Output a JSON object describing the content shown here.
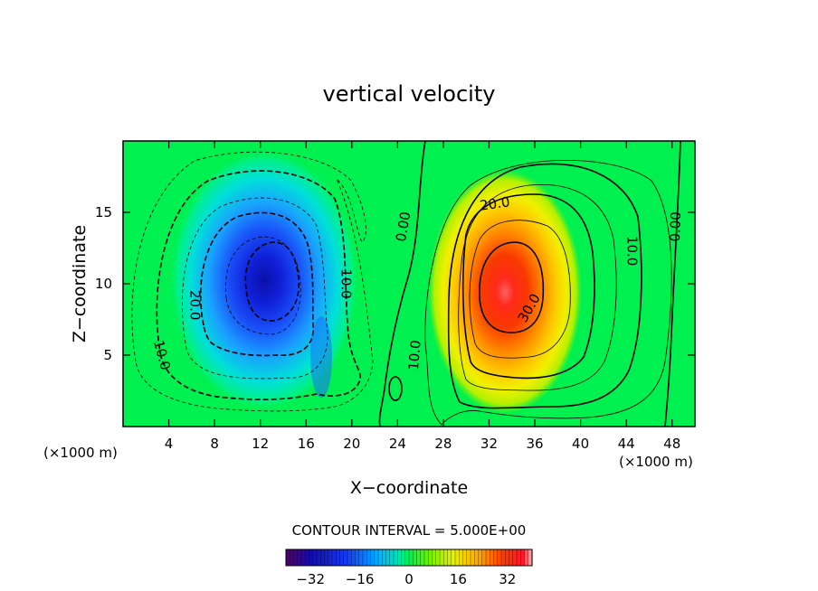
{
  "chart_data": {
    "type": "heatmap",
    "title": "vertical velocity",
    "xlabel": "X−coordinate",
    "ylabel": "Z−coordinate",
    "x_unit_left": "(×1000 m)",
    "x_unit_right": "(×1000 m)",
    "xlim": [
      0,
      50
    ],
    "ylim": [
      0,
      20
    ],
    "x_ticks": [
      4,
      8,
      12,
      16,
      20,
      24,
      28,
      32,
      36,
      40,
      44,
      48
    ],
    "y_ticks": [
      5,
      10,
      15
    ],
    "contour_interval_text": "CONTOUR INTERVAL = 5.000E+00",
    "colorbar": {
      "range": [
        -40,
        40
      ],
      "ticks": [
        {
          "value": -32,
          "label": "−32"
        },
        {
          "value": -16,
          "label": "−16"
        },
        {
          "value": 0,
          "label": "0"
        },
        {
          "value": 16,
          "label": "16"
        },
        {
          "value": 32,
          "label": "32"
        }
      ]
    },
    "features": [
      {
        "name": "downdraft",
        "center_x": 13,
        "center_z": 10.5,
        "peak": -35
      },
      {
        "name": "updraft",
        "center_x": 33,
        "center_z": 9.5,
        "peak": 38
      }
    ],
    "contour_labels": [
      {
        "text": "20.0",
        "x": 6.3,
        "z": 8.5,
        "angle": 90
      },
      {
        "text": "10.0",
        "x": 3.4,
        "z": 5.0,
        "angle": 75
      },
      {
        "text": "10.0",
        "x": 19.5,
        "z": 10.0,
        "angle": 90
      },
      {
        "text": "0.00",
        "x": 24.5,
        "z": 14.0,
        "angle": -80
      },
      {
        "text": "10.0",
        "x": 25.5,
        "z": 5.0,
        "angle": -85
      },
      {
        "text": "20.0",
        "x": 32.5,
        "z": 15.6,
        "angle": -8
      },
      {
        "text": "30.0",
        "x": 35.5,
        "z": 8.3,
        "angle": -60
      },
      {
        "text": "10.0",
        "x": 44.5,
        "z": 12.3,
        "angle": 90
      },
      {
        "text": "0.00",
        "x": 48.3,
        "z": 14.0,
        "angle": -88
      }
    ]
  }
}
